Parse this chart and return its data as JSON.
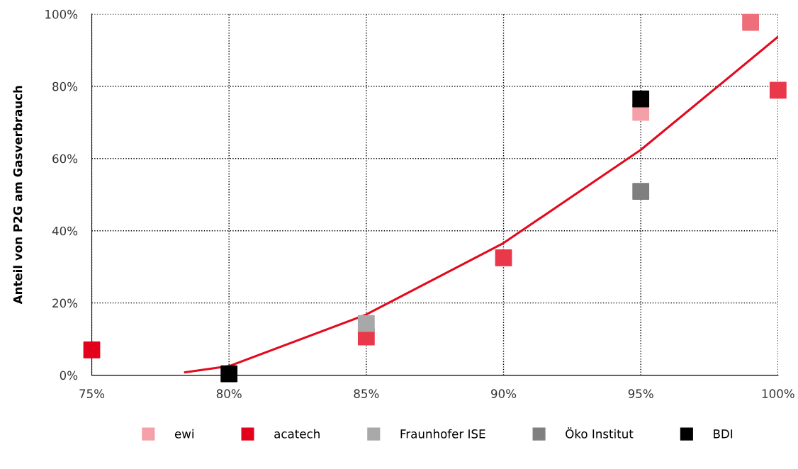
{
  "chart_data": {
    "type": "scatter",
    "ylabel": "Anteil von P2G am Gasverbrauch",
    "xlim": [
      75,
      100
    ],
    "ylim": [
      0,
      100
    ],
    "xticks": [
      {
        "value": 75,
        "label": "75%"
      },
      {
        "value": 80,
        "label": "80%"
      },
      {
        "value": 85,
        "label": "85%"
      },
      {
        "value": 90,
        "label": "90%"
      },
      {
        "value": 95,
        "label": "95%"
      },
      {
        "value": 100,
        "label": "100%"
      }
    ],
    "yticks": [
      {
        "value": 0,
        "label": "0%"
      },
      {
        "value": 20,
        "label": "20%"
      },
      {
        "value": 40,
        "label": "40%"
      },
      {
        "value": 60,
        "label": "60%"
      },
      {
        "value": 80,
        "label": "80%"
      },
      {
        "value": 100,
        "label": "100%"
      }
    ],
    "grid": true,
    "legend": "bottom",
    "series": [
      {
        "name": "ewi",
        "color": "#f4a0a8",
        "marker": "square",
        "x": [
          95
        ],
        "values": [
          72.8
        ]
      },
      {
        "color": "#ee6e7a",
        "marker": "square",
        "x": [
          99
        ],
        "values": [
          97.7
        ]
      },
      {
        "color": "#e8384a",
        "marker": "square",
        "x": [
          85,
          90,
          100
        ],
        "values": [
          10.6,
          32.5,
          78.9
        ]
      },
      {
        "name": "acatech",
        "color": "#e3001b",
        "marker": "square",
        "x": [
          75
        ],
        "values": [
          7.0
        ]
      },
      {
        "name": "Fraunhofer ISE",
        "color": "#a8a8a8",
        "marker": "square",
        "x": [
          85
        ],
        "values": [
          14.3
        ]
      },
      {
        "name": "Öko Institut",
        "color": "#7f7f7f",
        "marker": "square",
        "x": [
          95
        ],
        "values": [
          50.9
        ]
      },
      {
        "name": "BDI",
        "color": "#000000",
        "marker": "square",
        "x": [
          80,
          95
        ],
        "values": [
          0.4,
          76.5
        ]
      },
      {
        "type": "line",
        "color": "#e30a1e",
        "x": [
          78.4,
          80,
          85,
          90,
          95,
          100
        ],
        "values": [
          0.8,
          2.5,
          16.8,
          36.6,
          62.4,
          93.7
        ]
      }
    ]
  }
}
